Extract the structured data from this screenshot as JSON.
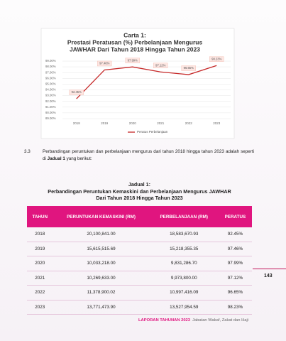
{
  "chart_data": {
    "type": "line",
    "title": [
      "Carta 1:",
      "Prestasi Peratusan (%) Perbelanjaan Mengurus",
      "JAWHAR Dari Tahun 2018 Hingga Tahun 2023"
    ],
    "categories": [
      "2018",
      "2019",
      "2020",
      "2021",
      "2022",
      "2023"
    ],
    "series": [
      {
        "name": "Peratus Perbelanjaan",
        "color": "#c62828",
        "values": [
          92.45,
          97.46,
          97.99,
          97.12,
          96.65,
          98.23
        ],
        "value_labels": [
          "92.45%",
          "97.46%",
          "97.99%",
          "97.12%",
          "96.65%",
          "98.23%"
        ]
      }
    ],
    "ylim": [
      89,
      99
    ],
    "yticks": [
      {
        "value": 89,
        "label": "89.00%"
      },
      {
        "value": 90,
        "label": "90.00%"
      },
      {
        "value": 91,
        "label": "91.00%"
      },
      {
        "value": 92,
        "label": "92.00%"
      },
      {
        "value": 93,
        "label": "93.00%"
      },
      {
        "value": 94,
        "label": "94.00%"
      },
      {
        "value": 95,
        "label": "95.00%"
      },
      {
        "value": 96,
        "label": "96.00%"
      },
      {
        "value": 97,
        "label": "97.00%"
      },
      {
        "value": 98,
        "label": "98.00%"
      },
      {
        "value": 99,
        "label": "99.00%"
      }
    ],
    "grid": true,
    "legend": "bottom"
  },
  "section": {
    "number": "3.3",
    "text_before": "Perbandingan peruntukan dan perbelanjaan mengurus dari tahun 2018 hingga tahun 2023 adalah seperti di",
    "bold": "Jadual 1",
    "text_after": "yang berikut:"
  },
  "table": {
    "caption": [
      "Jadual 1:",
      "Perbandingan Peruntukan Kemaskini dan Perbelanjaan  Mengurus JAWHAR",
      "Dari Tahun 2018 Hingga Tahun 2023"
    ],
    "header": [
      "TAHUN",
      "PERUNTUKAN KEMASKINI (RM)",
      "PERBELANJAAN (RM)",
      "PERATUS"
    ],
    "rows": [
      [
        "2018",
        "20,100,841.00",
        "18,583,670.93",
        "92.45%"
      ],
      [
        "2019",
        "15,615,515.69",
        "15,218,355.35",
        "97.46%"
      ],
      [
        "2020",
        "10,033,218.00",
        "9,831,286.70",
        "97.99%"
      ],
      [
        "2021",
        "10,269,633.00",
        "9,973,800.00",
        "97.12%"
      ],
      [
        "2022",
        "11,378,900.02",
        "10,997,416.09",
        "96.65%"
      ],
      [
        "2023",
        "13,771,473.90",
        "13,527,954.59",
        "98.23%"
      ]
    ]
  },
  "page_number": "143",
  "footer": {
    "report": "LAPORAN TAHUNAN 2023",
    "department": "Jabatan Wakaf, Zakat dan Haji"
  }
}
